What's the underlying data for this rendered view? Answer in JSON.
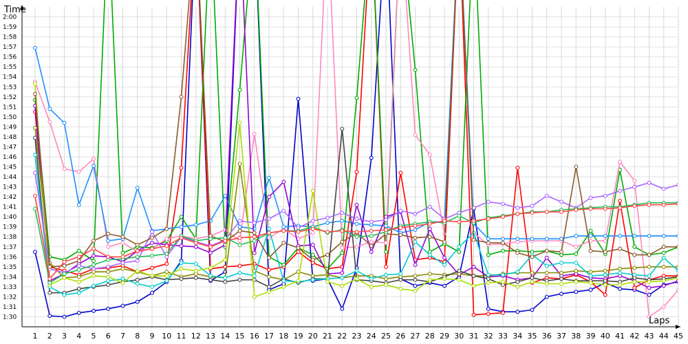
{
  "chart_data": {
    "type": "line",
    "ylabel": "Time",
    "xlabel": "Laps",
    "grid": true,
    "ylim_seconds": [
      89,
      121
    ],
    "y_tick_labels": [
      "1:30",
      "1:31",
      "1:32",
      "1:33",
      "1:34",
      "1:35",
      "1:36",
      "1:37",
      "1:38",
      "1:39",
      "1:40",
      "1:41",
      "1:42",
      "1:43",
      "1:44",
      "1:45",
      "1:46",
      "1:47",
      "1:48",
      "1:49",
      "1:50",
      "1:51",
      "1:52",
      "1:53",
      "1:54",
      "1:55",
      "1:56",
      "1:57",
      "1:58",
      "1:59",
      "2:00"
    ],
    "x_tick_labels": [
      "1",
      "2",
      "3",
      "4",
      "5",
      "6",
      "7",
      "8",
      "9",
      "10",
      "11",
      "12",
      "13",
      "14",
      "15",
      "16",
      "17",
      "18",
      "19",
      "20",
      "21",
      "22",
      "23",
      "24",
      "25",
      "26",
      "27",
      "28",
      "29",
      "30",
      "31",
      "32",
      "33",
      "34",
      "35",
      "36",
      "37",
      "38",
      "39",
      "40",
      "41",
      "42",
      "43",
      "44",
      "45"
    ],
    "series": [
      {
        "color": "#0000cc",
        "values": [
          96.5,
          90.1,
          90.0,
          90.4,
          90.6,
          90.8,
          91.1,
          91.5,
          92.4,
          93.5,
          95.6,
          130,
          93.6,
          94.5,
          130,
          130,
          92.7,
          93.3,
          111.8,
          93.6,
          93.8,
          90.8,
          94.9,
          105.9,
          130,
          93.8,
          93.1,
          93.4,
          93.1,
          94.0,
          100.8,
          90.8,
          90.5,
          90.5,
          90.7,
          92.0,
          92.3,
          92.5,
          92.7,
          93.4,
          92.8,
          92.7,
          92.2,
          93.2,
          93.5
        ]
      },
      {
        "color": "#ff0000",
        "values": [
          110.5,
          95.0,
          94.6,
          94.2,
          94.8,
          94.9,
          95.1,
          94.5,
          94.9,
          95.3,
          104.9,
          130,
          94.8,
          95.0,
          95.1,
          95.3,
          94.7,
          95.0,
          96.5,
          95.4,
          94.8,
          95.0,
          104.5,
          130,
          95.0,
          104.4,
          95.7,
          95.9,
          95.5,
          130,
          90.2,
          90.3,
          90.4,
          104.9,
          93.4,
          93.9,
          93.8,
          94.2,
          93.5,
          92.2,
          101.6,
          92.9,
          93.7,
          94.1,
          94.1
        ]
      },
      {
        "color": "#00aa00",
        "values": [
          111.7,
          96.0,
          95.7,
          96.6,
          95.6,
          130,
          96.4,
          97.0,
          96.9,
          97.6,
          100.0,
          97.8,
          130,
          97.0,
          112.7,
          130,
          96.0,
          95.2,
          96.9,
          96.2,
          94.8,
          96.4,
          111.9,
          130,
          96.5,
          130,
          114.7,
          96.5,
          97.3,
          96.5,
          130,
          96.2,
          96.6,
          96.6,
          96.5,
          96.6,
          96.2,
          96.3,
          98.6,
          96.3,
          104.7,
          97.0,
          96.2,
          96.4,
          97.0
        ]
      },
      {
        "color": "#ff88c0",
        "values": [
          113.5,
          109.5,
          104.8,
          104.5,
          105.8,
          97.0,
          97.4,
          96.5,
          96.8,
          97.8,
          98.1,
          97.8,
          98.1,
          98.7,
          97.6,
          108.3,
          97.9,
          98.8,
          97.8,
          98.4,
          130,
          96.9,
          97.0,
          97.5,
          97.4,
          130,
          108.2,
          106.2,
          98.3,
          130,
          98.4,
          97.2,
          97.3,
          97.5,
          97.6,
          97.6,
          97.6,
          97.0,
          97.6,
          97.6,
          105.5,
          103.6,
          90.0,
          91.0,
          92.7
        ]
      },
      {
        "color": "#1e90ff",
        "values": [
          116.9,
          110.8,
          109.4,
          101.2,
          105.1,
          97.6,
          97.8,
          102.9,
          98.6,
          98.8,
          99.0,
          99.2,
          99.6,
          102.1,
          99.0,
          98.8,
          103.9,
          99.0,
          99.1,
          99.0,
          99.4,
          99.6,
          99.3,
          99.2,
          99.1,
          98.4,
          98.7,
          99.5,
          99.5,
          130,
          99.3,
          97.8,
          97.8,
          97.8,
          97.8,
          97.8,
          97.8,
          98.1,
          98.1,
          98.1,
          98.1,
          98.1,
          98.1,
          98.1,
          98.1
        ]
      },
      {
        "color": "#9400d3",
        "values": [
          111.1,
          93.6,
          94.3,
          95.3,
          96.1,
          96.0,
          95.5,
          96.6,
          97.4,
          97.2,
          97.1,
          97.0,
          96.4,
          97.2,
          130,
          96.4,
          102.0,
          103.5,
          97.1,
          97.2,
          94.3,
          94.4,
          101.2,
          96.5,
          100.0,
          100.5,
          95.2,
          98.8,
          95.9,
          94.2,
          95.0,
          94.0,
          94.1,
          93.7,
          93.9,
          95.9,
          94.1,
          94.3,
          93.9,
          93.8,
          94.1,
          93.6,
          92.9,
          93.1,
          93.6
        ]
      },
      {
        "color": "#888800",
        "values": [
          108.9,
          95.4,
          93.9,
          94.0,
          94.5,
          94.5,
          94.8,
          94.5,
          94.1,
          94.5,
          94.0,
          94.3,
          94.0,
          93.9,
          105.3,
          94.6,
          94.0,
          93.7,
          94.5,
          94.1,
          94.2,
          93.9,
          94.1,
          94.1,
          93.8,
          94.0,
          94.1,
          94.3,
          94.2,
          94.3,
          94.1,
          94.1,
          94.3,
          94.4,
          94.4,
          94.4,
          94.4,
          94.6,
          94.5,
          94.6,
          94.8,
          94.9,
          95.0,
          95.0,
          95.0
        ]
      },
      {
        "color": "#444444",
        "values": [
          107.9,
          92.4,
          92.4,
          92.8,
          93.0,
          93.2,
          93.5,
          93.7,
          94.0,
          93.7,
          93.8,
          93.9,
          93.7,
          93.5,
          93.7,
          93.7,
          93.0,
          93.8,
          93.4,
          93.8,
          93.8,
          108.8,
          93.7,
          93.6,
          93.4,
          93.7,
          93.7,
          93.5,
          94.0,
          94.6,
          94.1,
          93.8,
          93.2,
          93.5,
          93.9,
          93.6,
          93.8,
          93.6,
          93.6,
          93.6,
          93.5,
          93.9,
          93.7,
          93.8,
          94.0
        ]
      },
      {
        "color": "#00cccc",
        "values": [
          106.2,
          93.0,
          92.2,
          92.4,
          93.1,
          93.6,
          93.8,
          93.3,
          93.0,
          93.6,
          95.4,
          95.3,
          94.1,
          93.9,
          94.4,
          94.1,
          98.8,
          93.6,
          93.5,
          93.7,
          93.8,
          93.9,
          94.6,
          93.8,
          94.2,
          94.3,
          97.5,
          96.2,
          95.2,
          97.0,
          98.4,
          94.2,
          94.2,
          94.5,
          96.2,
          95.1,
          95.4,
          95.4,
          94.1,
          94.2,
          94.4,
          94.2,
          94.1,
          95.9,
          94.6
        ]
      },
      {
        "color": "#aadd00",
        "values": [
          113.3,
          93.2,
          93.9,
          93.5,
          94.1,
          94.0,
          93.4,
          94.6,
          94.1,
          94.1,
          94.8,
          94.6,
          94.9,
          95.7,
          109.4,
          92.0,
          92.5,
          93.0,
          93.6,
          102.6,
          93.5,
          93.1,
          93.8,
          93.0,
          93.2,
          92.8,
          92.6,
          93.7,
          93.8,
          93.7,
          93.1,
          93.4,
          93.5,
          93.0,
          93.5,
          93.3,
          93.3,
          93.5,
          93.4,
          93.2,
          93.2,
          93.5,
          93.5,
          93.6,
          93.9
        ]
      },
      {
        "color": "#aa66ff",
        "values": [
          104.4,
          94.8,
          94.4,
          95.1,
          94.8,
          95.0,
          95.4,
          95.6,
          98.5,
          96.0,
          98.0,
          97.5,
          97.1,
          97.7,
          99.6,
          99.4,
          99.8,
          100.6,
          98.9,
          99.6,
          99.9,
          100.4,
          99.8,
          99.5,
          99.7,
          100.6,
          100.3,
          101.0,
          99.8,
          100.4,
          100.9,
          101.5,
          101.3,
          100.9,
          101.1,
          102.1,
          101.5,
          100.9,
          101.9,
          102.1,
          102.6,
          103.0,
          103.4,
          102.8,
          103.2
        ]
      },
      {
        "color": "#8b5a2b",
        "values": [
          112.3,
          95.0,
          95.1,
          95.6,
          97.6,
          98.3,
          98.0,
          97.2,
          97.9,
          98.8,
          112.0,
          130,
          98.1,
          97.5,
          98.6,
          98.4,
          95.9,
          97.4,
          96.9,
          95.7,
          96.2,
          97.5,
          98.4,
          97.1,
          98.3,
          98.2,
          97.9,
          98.0,
          97.5,
          130,
          97.7,
          97.4,
          97.4,
          96.4,
          96.0,
          96.6,
          96.5,
          105.0,
          96.6,
          96.5,
          96.8,
          96.2,
          96.2,
          97.0,
          97.0
        ]
      },
      {
        "color": "#22bb55",
        "values": [
          100.8,
          93.4,
          94.3,
          94.7,
          95.2,
          95.7,
          95.8,
          96.0,
          96.1,
          96.3,
          98.1,
          97.6,
          97.8,
          97.9,
          97.2,
          97.6,
          98.4,
          98.6,
          98.6,
          99.0,
          98.4,
          98.7,
          98.0,
          98.1,
          98.5,
          99.1,
          99.3,
          99.5,
          99.4,
          100.1,
          99.4,
          99.9,
          100.1,
          100.3,
          100.5,
          100.5,
          100.7,
          100.8,
          100.9,
          101.0,
          101.0,
          101.2,
          101.4,
          101.4,
          101.4
        ]
      },
      {
        "color": "#ff4444",
        "values": [
          102.1,
          93.8,
          95.5,
          96.0,
          96.8,
          96.0,
          96.0,
          96.6,
          96.8,
          97.1,
          97.9,
          97.4,
          97.0,
          97.6,
          97.9,
          98.0,
          98.4,
          98.6,
          98.5,
          98.8,
          98.5,
          98.6,
          98.5,
          98.6,
          98.7,
          98.9,
          99.1,
          99.3,
          99.6,
          99.5,
          99.6,
          99.8,
          100.0,
          100.3,
          100.4,
          100.5,
          100.5,
          100.7,
          100.8,
          100.8,
          100.9,
          101.1,
          101.2,
          101.2,
          101.3
        ]
      }
    ]
  }
}
